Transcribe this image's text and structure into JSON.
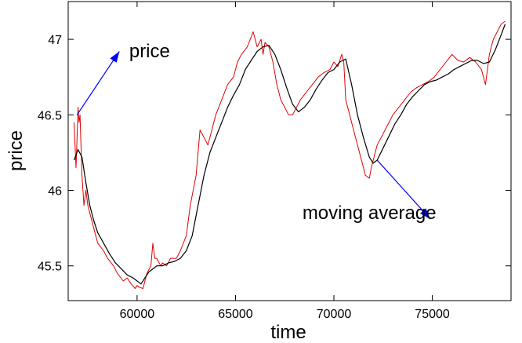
{
  "chart_data": {
    "type": "line",
    "title": "",
    "xlabel": "time",
    "ylabel": "price",
    "xlim": [
      56500,
      79000
    ],
    "ylim": [
      45.27,
      47.25
    ],
    "xticks": [
      60000,
      65000,
      70000,
      75000
    ],
    "yticks": [
      45.5,
      46,
      46.5,
      47
    ],
    "xtick_labels": [
      "60000",
      "65000",
      "70000",
      "75000"
    ],
    "ytick_labels": [
      "45.5",
      "46",
      "46.5",
      "47"
    ],
    "grid": false,
    "legend": "none",
    "series": [
      {
        "color": "#e00000",
        "x": [
          56800,
          56900,
          57000,
          57050,
          57100,
          57150,
          57200,
          57300,
          57400,
          57500,
          57600,
          57800,
          58000,
          58300,
          58500,
          58800,
          59000,
          59300,
          59500,
          59700,
          59900,
          60000,
          60100,
          60300,
          60500,
          60700,
          60800,
          60900,
          61000,
          61200,
          61300,
          61500,
          61700,
          62000,
          62200,
          62500,
          62700,
          63000,
          63200,
          63400,
          63600,
          63800,
          64000,
          64300,
          64600,
          64900,
          65100,
          65300,
          65600,
          65900,
          66100,
          66300,
          66400,
          66500,
          66700,
          66900,
          67100,
          67300,
          67500,
          67700,
          67900,
          68100,
          68300,
          68600,
          68900,
          69200,
          69500,
          69800,
          70000,
          70200,
          70400,
          70500,
          70600,
          70800,
          71000,
          71200,
          71400,
          71600,
          71800,
          71900,
          72000,
          72100,
          72200,
          72400,
          72600,
          72800,
          73000,
          73300,
          73600,
          73900,
          74200,
          74500,
          74800,
          75100,
          75400,
          75700,
          76000,
          76300,
          76600,
          76900,
          77200,
          77500,
          77700,
          77900,
          78100,
          78300,
          78500,
          78700
        ],
        "y": [
          46.45,
          46.15,
          46.55,
          46.45,
          46.5,
          46.3,
          46.1,
          45.9,
          46.0,
          45.9,
          45.85,
          45.75,
          45.65,
          45.6,
          45.55,
          45.5,
          45.45,
          45.4,
          45.42,
          45.38,
          45.35,
          45.37,
          45.36,
          45.35,
          45.45,
          45.5,
          45.65,
          45.55,
          45.55,
          45.5,
          45.52,
          45.5,
          45.55,
          45.55,
          45.6,
          45.7,
          45.9,
          46.1,
          46.4,
          46.35,
          46.3,
          46.4,
          46.5,
          46.6,
          46.7,
          46.75,
          46.85,
          46.9,
          46.95,
          47.05,
          46.95,
          47.0,
          46.9,
          46.98,
          46.95,
          46.85,
          46.7,
          46.6,
          46.55,
          46.5,
          46.5,
          46.55,
          46.6,
          46.65,
          46.7,
          46.75,
          46.78,
          46.8,
          46.85,
          46.82,
          46.9,
          46.85,
          46.6,
          46.5,
          46.4,
          46.3,
          46.2,
          46.1,
          46.08,
          46.15,
          46.2,
          46.25,
          46.3,
          46.35,
          46.4,
          46.45,
          46.5,
          46.55,
          46.6,
          46.65,
          46.68,
          46.7,
          46.72,
          46.75,
          46.8,
          46.85,
          46.9,
          46.86,
          46.85,
          46.88,
          46.85,
          46.8,
          46.7,
          46.9,
          47.0,
          47.05,
          47.1,
          47.12
        ]
      },
      {
        "color": "#000000",
        "x": [
          56800,
          57000,
          57200,
          57400,
          57600,
          57800,
          58000,
          58300,
          58600,
          58900,
          59200,
          59500,
          59800,
          60000,
          60200,
          60400,
          60600,
          60800,
          61000,
          61300,
          61600,
          61900,
          62200,
          62500,
          62800,
          63100,
          63400,
          63700,
          64000,
          64300,
          64600,
          64900,
          65200,
          65500,
          65800,
          66100,
          66400,
          66700,
          67000,
          67300,
          67600,
          67900,
          68200,
          68500,
          68800,
          69100,
          69400,
          69700,
          70000,
          70300,
          70600,
          70900,
          71200,
          71500,
          71800,
          72000,
          72200,
          72500,
          72800,
          73100,
          73400,
          73700,
          74000,
          74300,
          74600,
          74900,
          75200,
          75500,
          75800,
          76100,
          76400,
          76700,
          77000,
          77300,
          77600,
          77900,
          78200,
          78500,
          78700
        ],
        "y": [
          46.2,
          46.27,
          46.22,
          46.05,
          45.9,
          45.8,
          45.72,
          45.65,
          45.58,
          45.52,
          45.48,
          45.44,
          45.42,
          45.4,
          45.38,
          45.42,
          45.46,
          45.48,
          45.5,
          45.5,
          45.52,
          45.53,
          45.55,
          45.6,
          45.7,
          45.9,
          46.1,
          46.25,
          46.35,
          46.45,
          46.55,
          46.63,
          46.7,
          46.8,
          46.86,
          46.92,
          46.95,
          46.96,
          46.9,
          46.8,
          46.68,
          46.57,
          46.52,
          46.55,
          46.6,
          46.67,
          46.73,
          46.78,
          46.8,
          46.85,
          46.87,
          46.7,
          46.5,
          46.35,
          46.22,
          46.18,
          46.2,
          46.28,
          46.36,
          46.44,
          46.5,
          46.57,
          46.62,
          46.66,
          46.7,
          46.72,
          46.73,
          46.75,
          46.77,
          46.8,
          46.82,
          46.84,
          46.86,
          46.86,
          46.84,
          46.85,
          46.93,
          47.03,
          47.1
        ]
      }
    ],
    "annotations": [
      {
        "text": "price",
        "arrow_from": [
          56950,
          46.5
        ],
        "arrow_to": [
          59100,
          46.92
        ],
        "text_at": [
          59600,
          46.88
        ]
      },
      {
        "text": "moving average",
        "arrow_from": [
          72200,
          46.2
        ],
        "arrow_to": [
          74900,
          45.81
        ],
        "text_at": [
          68400,
          45.81
        ]
      }
    ],
    "arrow_color": "#0000ff"
  }
}
